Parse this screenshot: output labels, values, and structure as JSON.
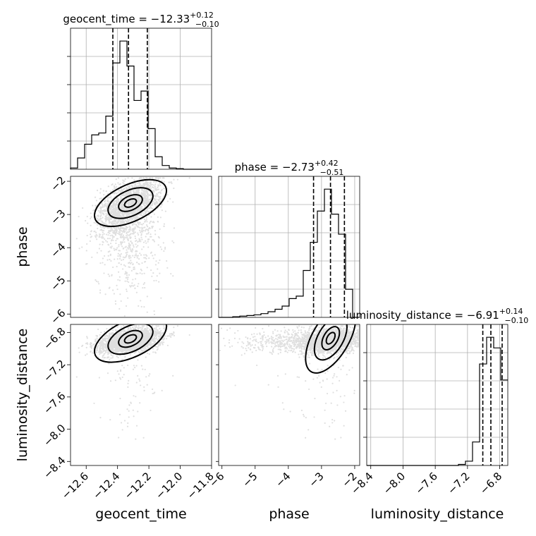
{
  "chart_data": {
    "type": "corner",
    "parameters": [
      {
        "name": "geocent_time",
        "label": "geocent_time",
        "median": -12.33,
        "plus": "+0.12",
        "minus": "−0.10",
        "title": "geocent_time = −12.33",
        "range": [
          -12.7,
          -11.8
        ],
        "ticks": [
          -12.6,
          -12.4,
          -12.2,
          -12.0,
          -11.8
        ],
        "tick_labels": [
          "−12.6",
          "−12.4",
          "−12.2",
          "−12.0",
          "−11.8"
        ],
        "quantiles": [
          -12.43,
          -12.33,
          -12.21
        ]
      },
      {
        "name": "phase",
        "label": "phase",
        "median": -2.73,
        "plus": "+0.42",
        "minus": "−0.51",
        "title": "phase = −2.73",
        "range": [
          -6.1,
          -1.85
        ],
        "ticks": [
          -6,
          -5,
          -4,
          -3,
          -2
        ],
        "tick_labels": [
          "−6",
          "−5",
          "−4",
          "−3",
          "−2"
        ],
        "quantiles": [
          -3.24,
          -2.73,
          -2.31
        ]
      },
      {
        "name": "luminosity_distance",
        "label": "luminosity_distance",
        "median": -6.91,
        "plus": "+0.14",
        "minus": "−0.10",
        "title": "luminosity_distance = −6.91",
        "range": [
          -8.45,
          -6.7
        ],
        "ticks": [
          -8.4,
          -8.0,
          -7.6,
          -7.2,
          -6.8
        ],
        "tick_labels": [
          "−8.4",
          "−8.0",
          "−7.6",
          "−7.2",
          "−6.8"
        ],
        "quantiles": [
          -7.01,
          -6.91,
          -6.77
        ]
      }
    ],
    "histograms": [
      {
        "param": "geocent_time",
        "edges": [
          -12.7,
          -12.655,
          -12.61,
          -12.565,
          -12.52,
          -12.475,
          -12.43,
          -12.385,
          -12.34,
          -12.295,
          -12.25,
          -12.205,
          -12.16,
          -12.115,
          -12.07,
          -12.025,
          -11.98,
          -11.935,
          -11.89,
          -11.845,
          -11.8
        ],
        "counts": [
          2,
          18,
          40,
          55,
          58,
          85,
          170,
          205,
          165,
          110,
          125,
          65,
          20,
          6,
          2,
          1,
          0,
          0,
          0,
          0
        ]
      },
      {
        "param": "phase",
        "edges": [
          -6.1,
          -5.8875,
          -5.675,
          -5.4625,
          -5.25,
          -5.0375,
          -4.825,
          -4.6125,
          -4.4,
          -4.1875,
          -3.975,
          -3.7625,
          -3.55,
          -3.3375,
          -3.125,
          -2.9125,
          -2.7,
          -2.4875,
          -2.275,
          -2.0625,
          -1.85
        ],
        "counts": [
          0,
          0,
          1,
          2,
          3,
          4,
          6,
          9,
          13,
          18,
          30,
          34,
          75,
          120,
          170,
          205,
          165,
          133,
          45,
          0
        ]
      },
      {
        "param": "luminosity_distance",
        "edges": [
          -8.45,
          -8.3625,
          -8.275,
          -8.1875,
          -8.1,
          -8.0125,
          -7.925,
          -7.8375,
          -7.75,
          -7.6625,
          -7.575,
          -7.4875,
          -7.4,
          -7.3125,
          -7.225,
          -7.1375,
          -7.05,
          -6.9625,
          -6.875,
          -6.7875,
          -6.7
        ],
        "counts": [
          0,
          0,
          0,
          0,
          0,
          0,
          0,
          0,
          0,
          0,
          0,
          0,
          0,
          1,
          4,
          22,
          95,
          120,
          110,
          80
        ]
      }
    ],
    "pairs": [
      {
        "x": "geocent_time",
        "y": "phase",
        "grid": false
      },
      {
        "x": "geocent_time",
        "y": "luminosity_distance",
        "grid": false
      },
      {
        "x": "phase",
        "y": "luminosity_distance",
        "grid": false
      }
    ],
    "axis_labels": {
      "x": [
        "geocent_time",
        "phase",
        "luminosity_distance"
      ],
      "y": [
        "phase",
        "luminosity_distance"
      ]
    },
    "grid": true,
    "colors": {
      "line": "#000000",
      "grid": "#b0b0b0",
      "scatter": "#000000"
    }
  }
}
